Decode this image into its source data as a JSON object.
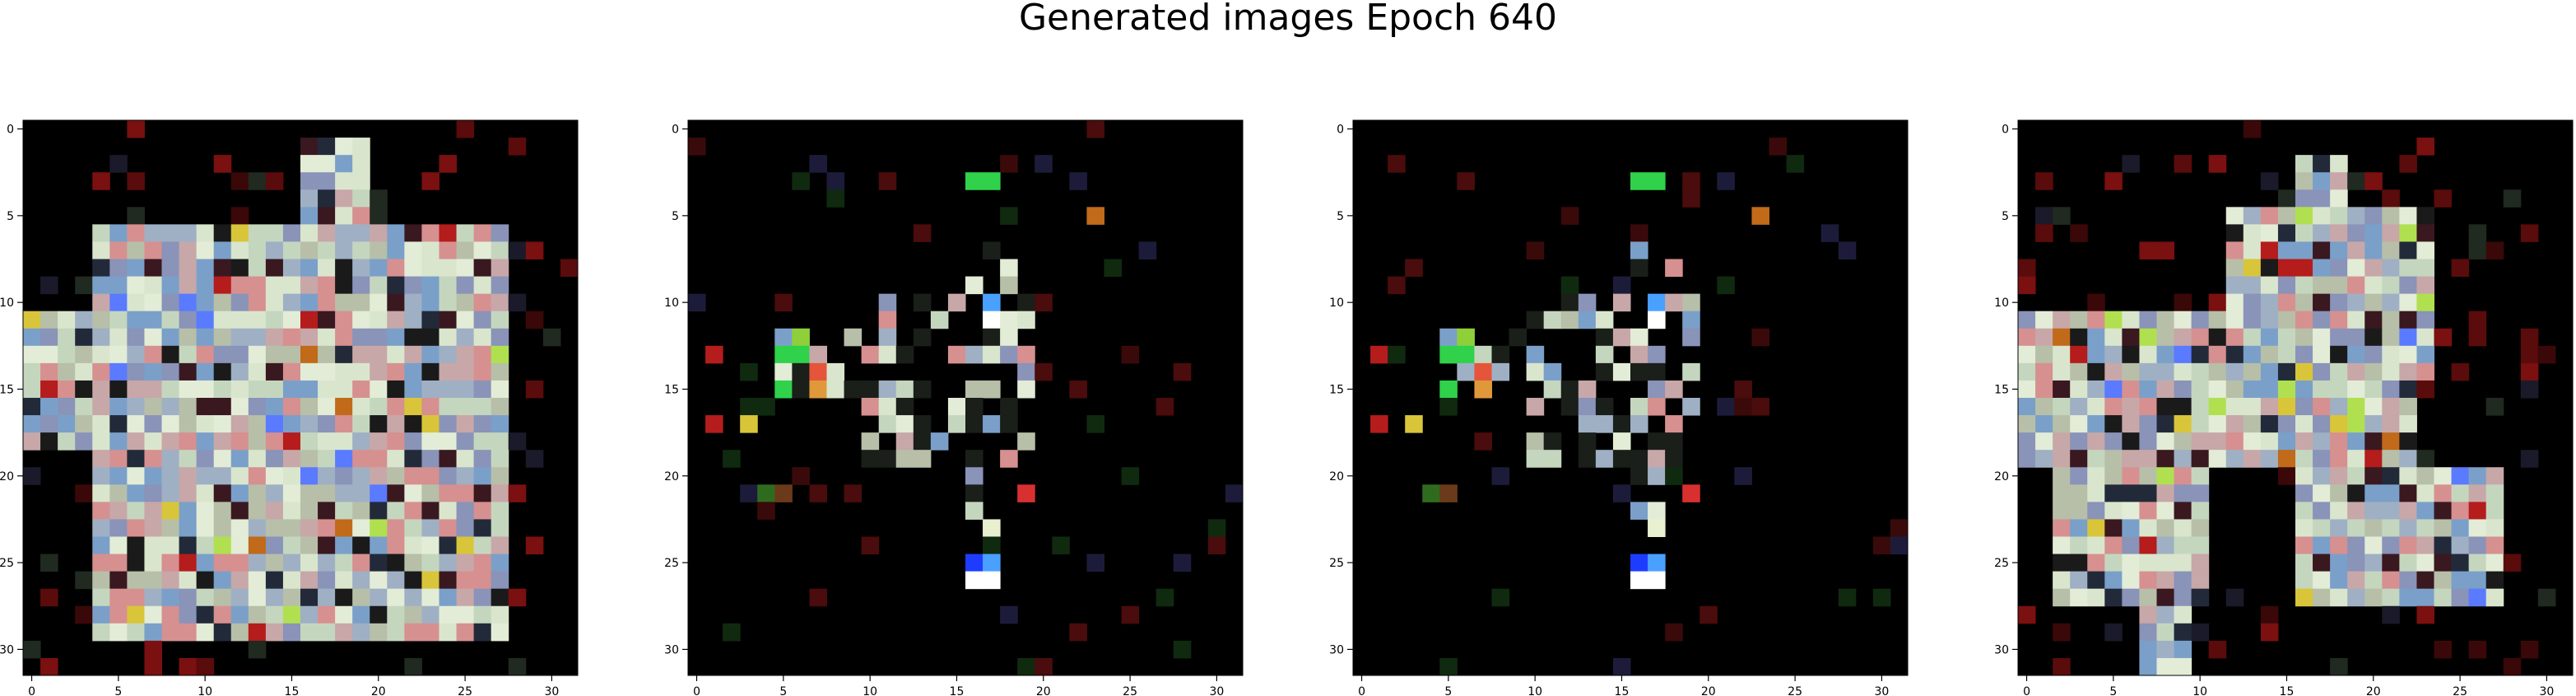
{
  "figure": {
    "title": "Generated images Epoch 640"
  },
  "chart_data": {
    "type": "heatmap",
    "title": "Generated images Epoch 640",
    "panels": 4,
    "grid_size": 32,
    "xlim": [
      0,
      31
    ],
    "ylim": [
      31,
      0
    ],
    "x_ticks": [
      "0",
      "5",
      "10",
      "15",
      "20",
      "25",
      "30"
    ],
    "y_ticks": [
      "0",
      "5",
      "10",
      "15",
      "20",
      "25",
      "30"
    ],
    "background_color": "#000000",
    "pixel_palette": [
      "#d9e6cd",
      "#c5d6bf",
      "#e3ecd6",
      "#b7bfa8",
      "#9fb0c4",
      "#c8a7a8",
      "#8a93b8",
      "#7aa0c9",
      "#d69090"
    ],
    "accent_colors": {
      "red": "#b51c1c",
      "green": "#2fd24a",
      "orange": "#c06a1a",
      "yellow": "#d8c53a",
      "blue": "#1e3cff",
      "light_blue": "#4aa0ff"
    }
  }
}
